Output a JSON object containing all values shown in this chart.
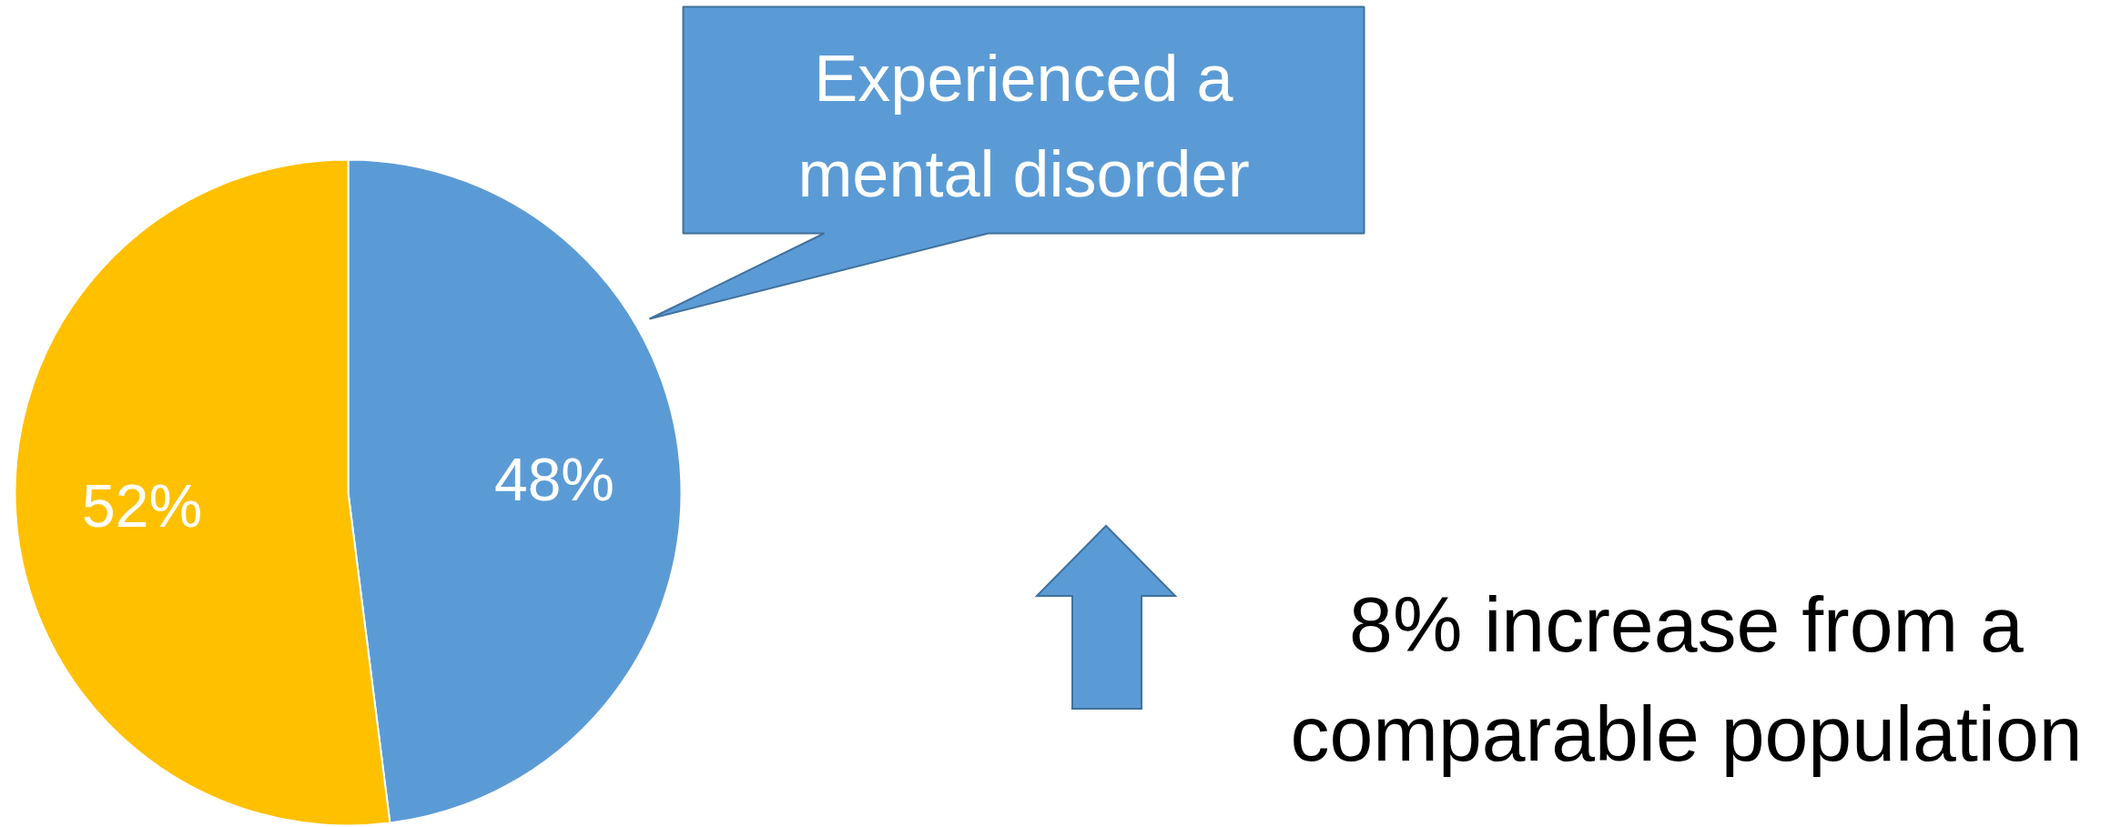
{
  "chart_data": {
    "type": "pie",
    "categories": [
      null,
      null
    ],
    "values": [
      48,
      52
    ],
    "colors": [
      "#5b9bd5",
      "#ffc000"
    ],
    "value_labels": [
      "48%",
      "52%"
    ],
    "annotations": [
      "Experienced a mental disorder",
      "8% increase from a comparable population"
    ]
  }
}
